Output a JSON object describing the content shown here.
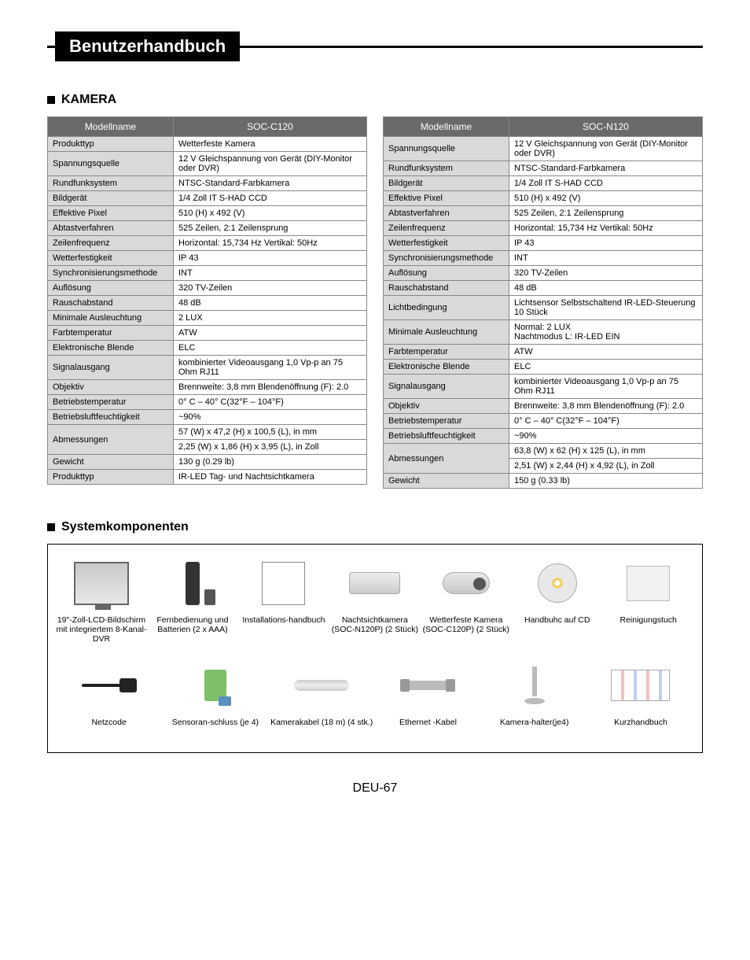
{
  "header": {
    "title": "Benutzerhandbuch"
  },
  "section_camera": {
    "title": "KAMERA"
  },
  "table_left": {
    "header_left": "Modellname",
    "header_right": "SOC-C120",
    "rows": [
      {
        "label": "Produkttyp",
        "value": "Wetterfeste Kamera"
      },
      {
        "label": "Spannungsquelle",
        "value": "12 V Gleichspannung von Gerät (DIY-Monitor oder DVR)"
      },
      {
        "label": "Rundfunksystem",
        "value": "NTSC-Standard-Farbkamera"
      },
      {
        "label": "Bildgerät",
        "value": "1/4 Zoll IT S-HAD CCD"
      },
      {
        "label": "Effektive Pixel",
        "value": "510 (H) x 492 (V)"
      },
      {
        "label": "Abtastverfahren",
        "value": "525 Zeilen, 2:1 Zeilensprung"
      },
      {
        "label": "Zeilenfrequenz",
        "value": "Horizontal: 15,734 Hz Vertikal: 50Hz"
      },
      {
        "label": "Wetterfestigkeit",
        "value": "IP 43"
      },
      {
        "label": "Synchronisierungsmethode",
        "value": "INT"
      },
      {
        "label": "Auflösung",
        "value": "320 TV-Zeilen"
      },
      {
        "label": "Rauschabstand",
        "value": "48 dB"
      },
      {
        "label": "Minimale Ausleuchtung",
        "value": "2 LUX"
      },
      {
        "label": "Farbtemperatur",
        "value": "ATW"
      },
      {
        "label": "Elektronische Blende",
        "value": "ELC"
      },
      {
        "label": "Signalausgang",
        "value": "kombinierter Videoausgang 1,0 Vp-p an 75 Ohm RJ11"
      },
      {
        "label": "Objektiv",
        "value": "Brennweite: 3,8 mm Blendenöffnung (F): 2.0"
      },
      {
        "label": "Betriebstemperatur",
        "value": "0° C – 40° C(32°F – 104°F)"
      },
      {
        "label": "Betriebsluftfeuchtigkeit",
        "value": "~90%"
      },
      {
        "label": "Abmessungen",
        "value": "57 (W) x 47,2 (H) x 100,5 (L), in mm",
        "value2": "2,25 (W) x 1,86 (H) x 3,95 (L), in Zoll"
      },
      {
        "label": "Gewicht",
        "value": "130 g (0.29 lb)"
      },
      {
        "label": "Produkttyp",
        "value": "IR-LED Tag- und Nachtsichtkamera"
      }
    ]
  },
  "table_right": {
    "header_left": "Modellname",
    "header_right": "SOC-N120",
    "rows": [
      {
        "label": "Spannungsquelle",
        "value": "12 V Gleichspannung von Gerät (DIY-Monitor oder DVR)"
      },
      {
        "label": "Rundfunksystem",
        "value": "NTSC-Standard-Farbkamera"
      },
      {
        "label": "Bildgerät",
        "value": "1/4 Zoll IT S-HAD CCD"
      },
      {
        "label": "Effektive Pixel",
        "value": "510 (H) x 492 (V)"
      },
      {
        "label": "Abtastverfahren",
        "value": "525 Zeilen, 2:1 Zeilensprung"
      },
      {
        "label": "Zeilenfrequenz",
        "value": "Horizontal: 15,734 Hz Vertikal: 50Hz"
      },
      {
        "label": "Wetterfestigkeit",
        "value": "IP 43"
      },
      {
        "label": "Synchronisierungsmethode",
        "value": "INT"
      },
      {
        "label": "Auflösung",
        "value": "320 TV-Zeilen"
      },
      {
        "label": "Rauschabstand",
        "value": "48 dB"
      },
      {
        "label": "Lichtbedingung",
        "value": "Lichtsensor Selbstschaltend IR-LED-Steuerung 10 Stück"
      },
      {
        "label": "Minimale Ausleuchtung",
        "value": "Normal: 2 LUX\nNachtmodus L: IR-LED EIN"
      },
      {
        "label": "Farbtemperatur",
        "value": "ATW"
      },
      {
        "label": "Elektronische Blende",
        "value": "ELC"
      },
      {
        "label": "Signalausgang",
        "value": "kombinierter Videoausgang 1,0 Vp-p an 75 Ohm RJ11"
      },
      {
        "label": "Objektiv",
        "value": "Brennweite: 3,8 mm Blendenöffnung (F): 2.0"
      },
      {
        "label": "Betriebstemperatur",
        "value": "0° C – 40° C(32°F – 104°F)"
      },
      {
        "label": "Betriebsluftfeuchtigkeit",
        "value": "~90%"
      },
      {
        "label": "Abmessungen",
        "value": "63,8 (W) x 62 (H) x 125 (L), in mm",
        "value2": "2,51 (W) x 2,44 (H) x 4,92 (L), in Zoll"
      },
      {
        "label": "Gewicht",
        "value": "150 g (0.33 lb)"
      }
    ]
  },
  "section_components": {
    "title": "Systemkomponenten"
  },
  "components_row1": [
    {
      "icon": "monitor",
      "label": "19\"-Zoll-LCD-Bildschirm mit integriertem 8-Kanal-DVR"
    },
    {
      "icon": "remote",
      "label": "Fernbedienung und Batterien (2 x AAA)"
    },
    {
      "icon": "manual",
      "label": "Installations-handbuch"
    },
    {
      "icon": "cam-night",
      "label": "Nachtsichtkamera (SOC-N120P) (2 Stück)"
    },
    {
      "icon": "cam-weather",
      "label": "Wetterfeste Kamera (SOC-C120P) (2 Stück)"
    },
    {
      "icon": "cd",
      "label": "Handbuhc auf CD"
    },
    {
      "icon": "cloth",
      "label": "Reinigungstuch"
    }
  ],
  "components_row2": [
    {
      "icon": "plug",
      "label": "Netzcode"
    },
    {
      "icon": "sensor",
      "label": "Sensoran-schluss (je 4)"
    },
    {
      "icon": "cable",
      "label": "Kamerakabel (18 m) (4 stk.)"
    },
    {
      "icon": "ethernet",
      "label": "Ethernet -Kabel"
    },
    {
      "icon": "stand",
      "label": "Kamera-halter(je4)"
    },
    {
      "icon": "quickguide",
      "label": "Kurzhandbuch"
    }
  ],
  "footer": {
    "page": "DEU-67"
  },
  "colors": {
    "table_header_bg": "#6a6a6a",
    "table_header_fg": "#ffffff",
    "table_label_bg": "#d9d9d9",
    "border": "#888888"
  }
}
